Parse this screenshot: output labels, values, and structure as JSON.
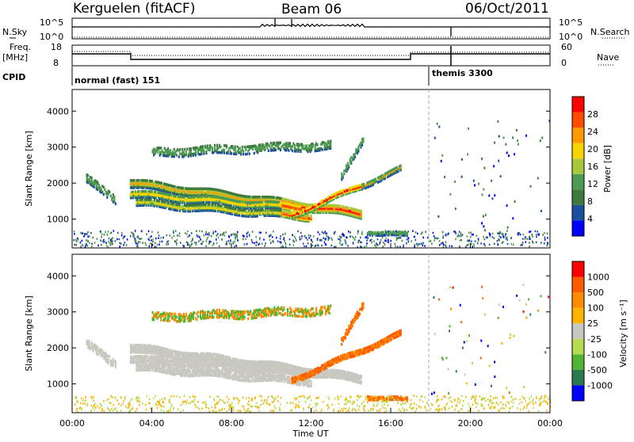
{
  "header": {
    "station": "Kerguelen (fitACF)",
    "beam": "Beam 06",
    "date": "06/Oct/2011"
  },
  "noise_panel": {
    "left_label": "N.Sky",
    "right_label": "N.Search",
    "left_ticks": [
      "10^5",
      "10^0"
    ],
    "right_ticks": [
      "10^5",
      "10^0"
    ]
  },
  "freq_panel": {
    "left_label_1": "Freq.",
    "left_label_2": "[MHz]",
    "right_label": "Nave",
    "left_ticks": [
      "18",
      "8"
    ],
    "right_ticks": [
      "60",
      "0"
    ]
  },
  "cpid": {
    "label": "CPID",
    "modes": [
      {
        "name": "normal (fast) 151",
        "start_h": 0,
        "end_h": 18
      },
      {
        "name": "themis 3300",
        "start_h": 18,
        "end_h": 24
      }
    ]
  },
  "colors": {
    "power": [
      "#0000ff",
      "#1a4fa0",
      "#3e7a40",
      "#4d9a52",
      "#a8c83a",
      "#f5d400",
      "#ff9a00",
      "#ff4a00",
      "#ff0000"
    ],
    "velocity": [
      "#ff0000",
      "#ff5a00",
      "#ff8c00",
      "#ffb400",
      "#c8c8c0",
      "#b4dc50",
      "#50b430",
      "#2a7a50",
      "#0000ff"
    ]
  },
  "chart_data": [
    {
      "type": "heatmap",
      "name": "Power",
      "ylabel": "Slant Range [km]",
      "yticks": [
        "1000",
        "2000",
        "3000",
        "4000"
      ],
      "ylim": [
        200,
        4600
      ],
      "xlim": [
        0,
        24
      ],
      "colorbar": {
        "label": "Power [dB]",
        "ticks": [
          "4",
          "8",
          "12",
          "16",
          "20",
          "24",
          "28"
        ],
        "range": [
          0,
          32
        ]
      }
    },
    {
      "type": "heatmap",
      "name": "Velocity",
      "ylabel": "Slant Range [km]",
      "yticks": [
        "1000",
        "2000",
        "3000",
        "4000"
      ],
      "ylim": [
        200,
        4600
      ],
      "xlim": [
        0,
        24
      ],
      "xlabel": "Time UT",
      "xticks": [
        "00:00",
        "04:00",
        "08:00",
        "12:00",
        "16:00",
        "20:00",
        "00:00"
      ],
      "colorbar": {
        "label": "Velocity [m s⁻¹]",
        "ticks": [
          "1000",
          "500",
          "100",
          "25",
          "-25",
          "-100",
          "-500",
          "-1000"
        ]
      }
    }
  ]
}
